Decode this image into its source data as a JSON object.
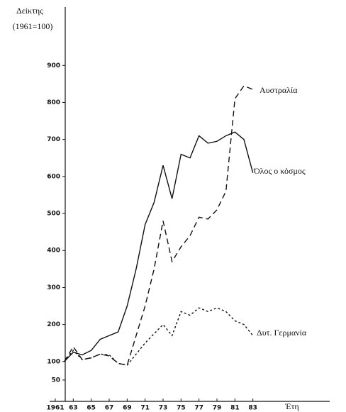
{
  "chart_data": {
    "type": "line",
    "y_label": [
      "Δείκτης",
      "(1961=100)"
    ],
    "x_label": "Έτη",
    "xlim": [
      1961,
      1991
    ],
    "xticks": [
      {
        "value": 1961,
        "label": "1961"
      },
      {
        "value": 1963,
        "label": "63"
      },
      {
        "value": 1965,
        "label": "65"
      },
      {
        "value": 1967,
        "label": "67"
      },
      {
        "value": 1969,
        "label": "69"
      },
      {
        "value": 1971,
        "label": "71"
      },
      {
        "value": 1973,
        "label": "73"
      },
      {
        "value": 1975,
        "label": "75"
      },
      {
        "value": 1977,
        "label": "77"
      },
      {
        "value": 1979,
        "label": "79"
      },
      {
        "value": 1981,
        "label": "81"
      },
      {
        "value": 1983,
        "label": "83"
      }
    ],
    "ylim": [
      0,
      1050
    ],
    "yticks": [
      50,
      100,
      200,
      300,
      400,
      500,
      600,
      700,
      800,
      900
    ],
    "x": [
      1962,
      1963,
      1964,
      1965,
      1966,
      1967,
      1968,
      1969,
      1970,
      1971,
      1972,
      1973,
      1974,
      1975,
      1976,
      1977,
      1978,
      1979,
      1980,
      1981,
      1982,
      1983
    ],
    "series": [
      {
        "name": "Όλος ο κόσμος",
        "color": "#111",
        "dash": "none",
        "values": [
          100,
          125,
          118,
          130,
          160,
          170,
          180,
          250,
          350,
          470,
          530,
          630,
          540,
          660,
          650,
          710,
          690,
          695,
          710,
          720,
          700,
          610
        ]
      },
      {
        "name": "Αυστραλία",
        "color": "#111",
        "dash": "8 5",
        "values": [
          100,
          140,
          105,
          110,
          120,
          115,
          95,
          90,
          170,
          250,
          350,
          480,
          370,
          410,
          440,
          490,
          485,
          510,
          560,
          810,
          845,
          835
        ]
      },
      {
        "name": "Δυτ. Γερμανία",
        "color": "#111",
        "dash": "3 3",
        "values": [
          100,
          130,
          105,
          110,
          120,
          118,
          95,
          90,
          120,
          150,
          175,
          200,
          170,
          235,
          225,
          245,
          235,
          245,
          235,
          210,
          200,
          170
        ]
      }
    ]
  }
}
